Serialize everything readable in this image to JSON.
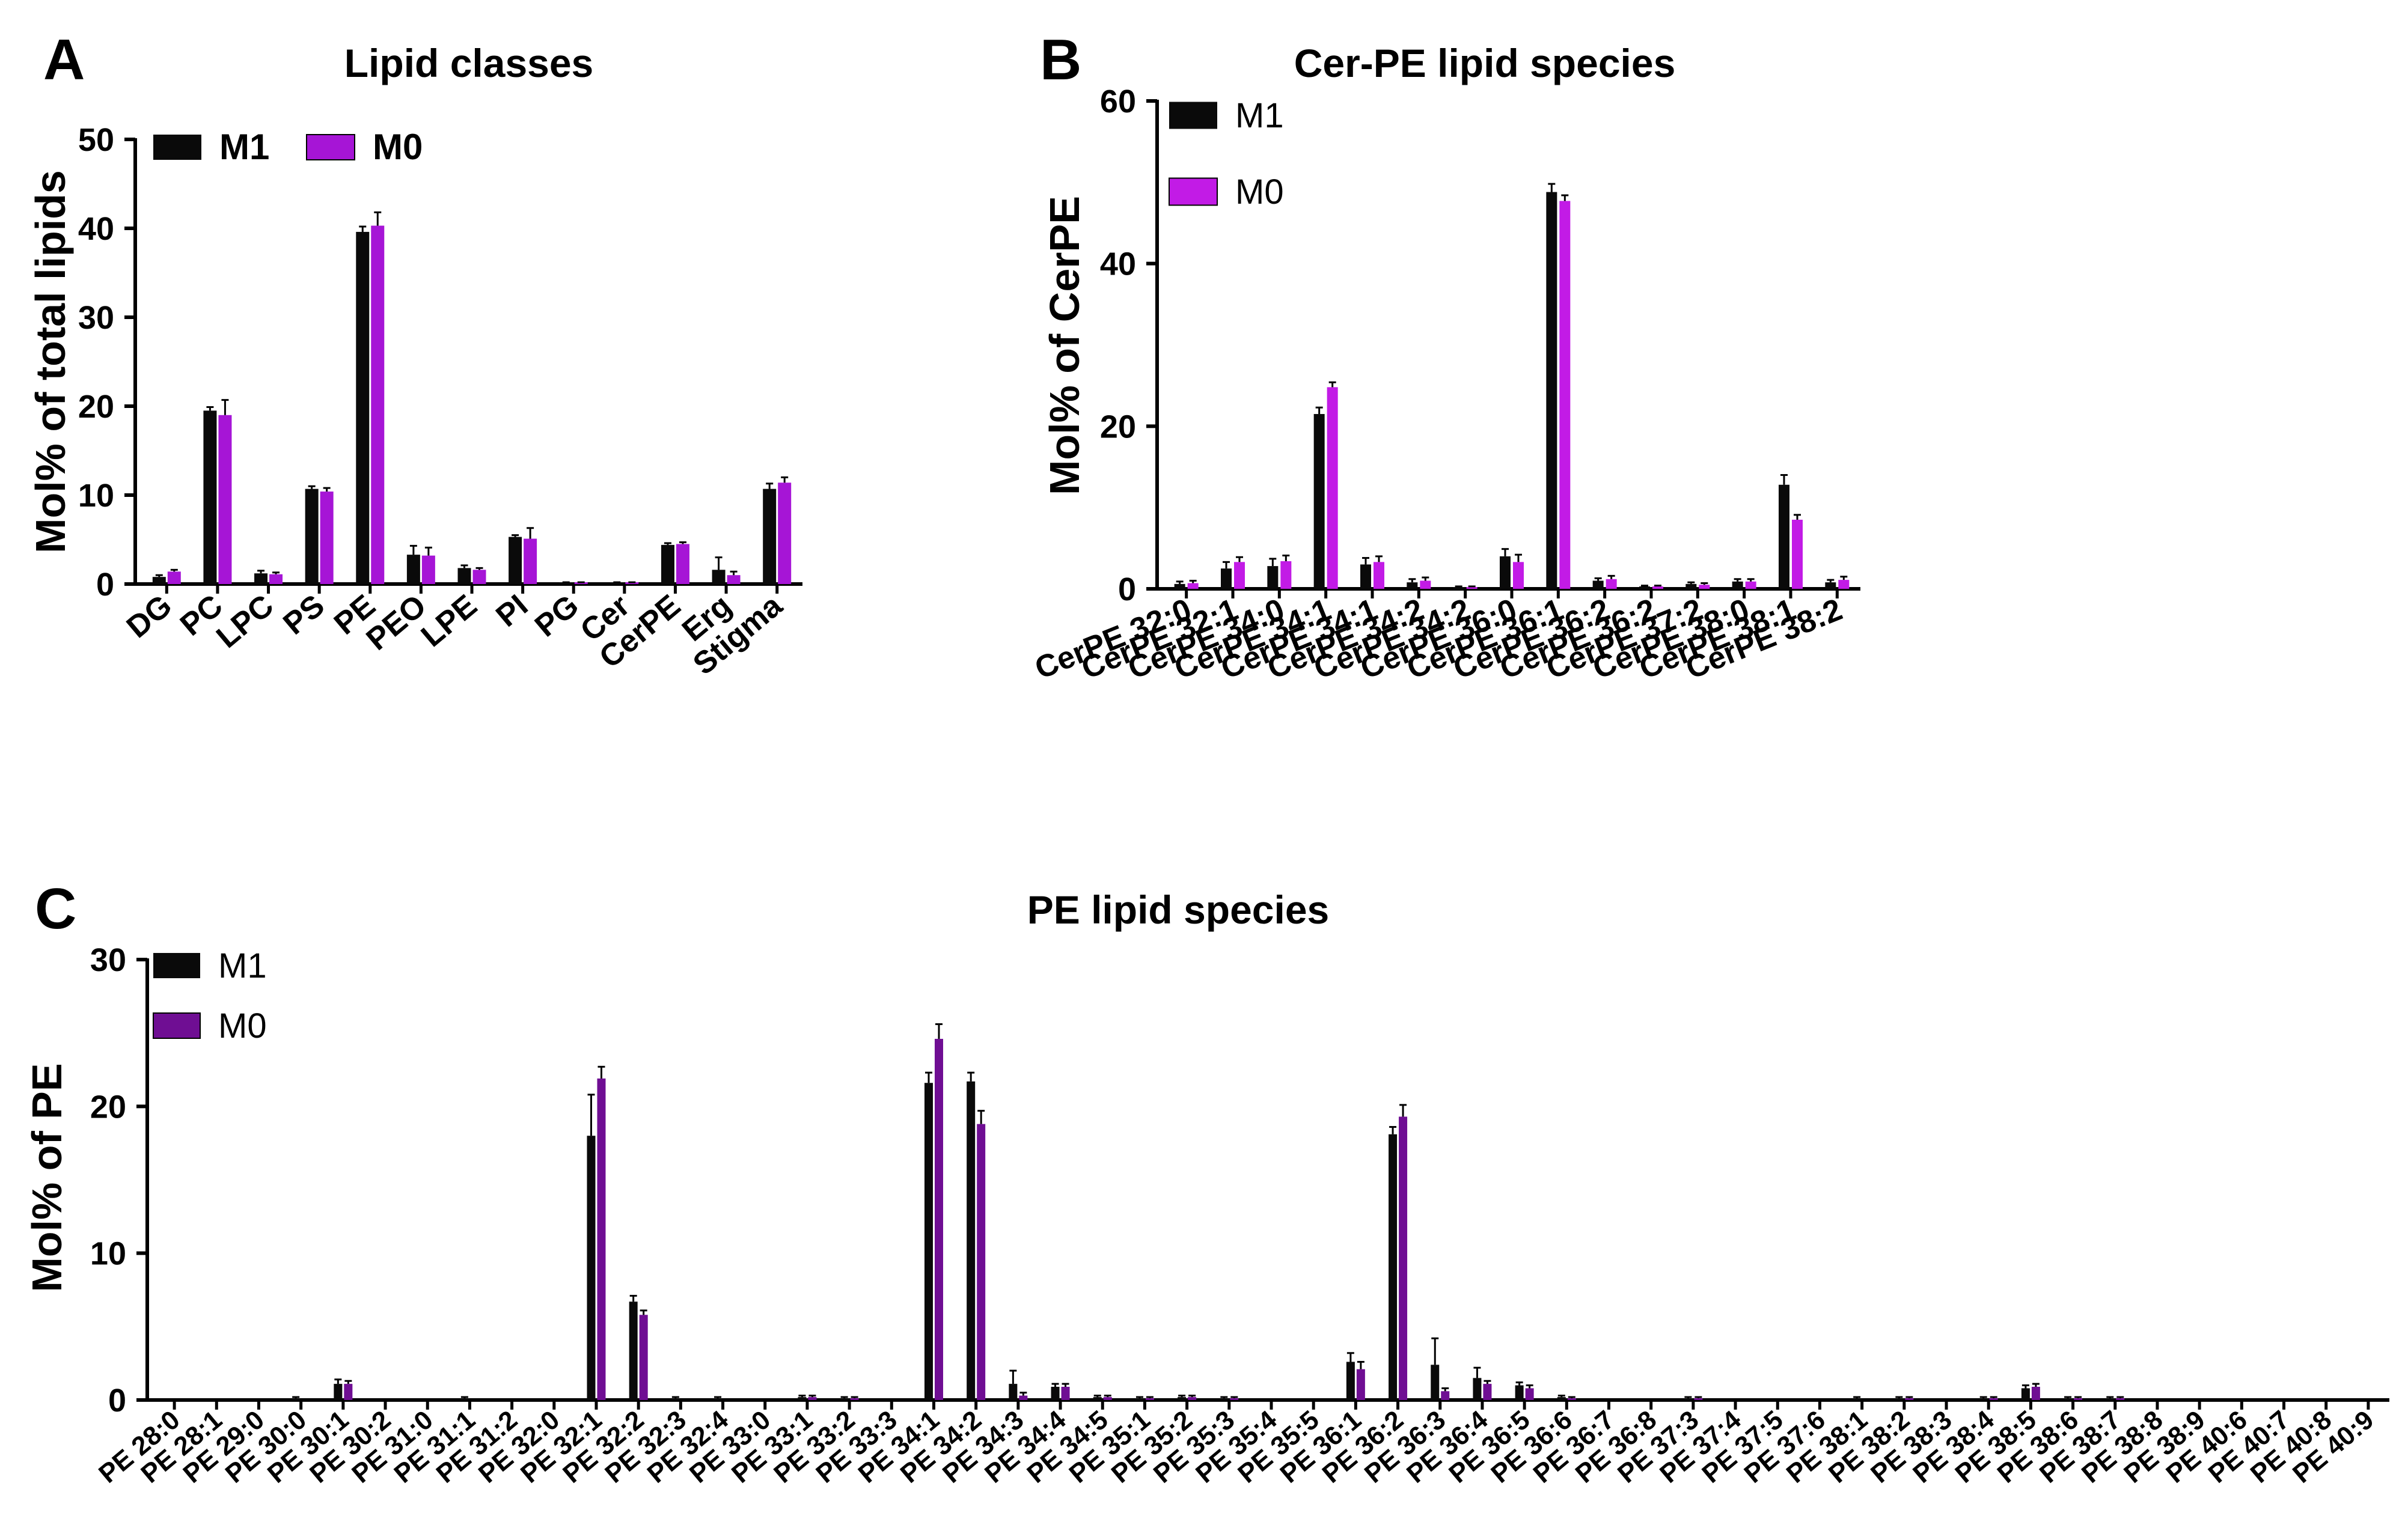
{
  "colors": {
    "m1": "#0a0a0a",
    "m0_a": "#a615d6",
    "m0_b": "#c21be6",
    "m0_c": "#6f0e93",
    "axis": "#000000",
    "error": "#000000"
  },
  "chart_data": [
    {
      "panel": "A",
      "type": "bar",
      "title": "Lipid classes",
      "xlabel": "",
      "ylabel": "Mol% of total lipids",
      "ylim": [
        0,
        50
      ],
      "yticks": [
        "0",
        "10",
        "20",
        "30",
        "40",
        "50"
      ],
      "legend_position": "top-left",
      "categories": [
        "DG",
        "PC",
        "LPC",
        "PS",
        "PE",
        "PEO",
        "LPE",
        "PI",
        "PG",
        "Cer",
        "CerPE",
        "Erg",
        "Stigma"
      ],
      "series": [
        {
          "name": "M1",
          "values": [
            0.8,
            19.5,
            1.2,
            10.7,
            39.6,
            3.3,
            1.8,
            5.3,
            0.1,
            0.1,
            4.4,
            1.6,
            10.7
          ],
          "errors": [
            0.2,
            0.4,
            0.3,
            0.3,
            0.6,
            1.0,
            0.3,
            0.2,
            0.1,
            0.1,
            0.2,
            1.4,
            0.6
          ]
        },
        {
          "name": "M0",
          "values": [
            1.4,
            19.0,
            1.1,
            10.4,
            40.3,
            3.2,
            1.6,
            5.1,
            0.1,
            0.1,
            4.5,
            1.0,
            11.4
          ],
          "errors": [
            0.2,
            1.7,
            0.2,
            0.4,
            1.5,
            0.9,
            0.2,
            1.2,
            0.1,
            0.1,
            0.2,
            0.4,
            0.6
          ]
        }
      ]
    },
    {
      "panel": "B",
      "type": "bar",
      "title": "Cer-PE lipid species",
      "xlabel": "",
      "ylabel": "Mol% of CerPE",
      "ylim": [
        0,
        60
      ],
      "yticks": [
        "0",
        "20",
        "40",
        "60"
      ],
      "legend_position": "top-left",
      "categories": [
        "CerPE 32:0",
        "CerPE 32:1",
        "CerPE 34:0",
        "CerPE 34:1",
        "CerPE 34:1",
        "CerPE 34:2",
        "CerPE 34:2",
        "CerPE 36:0",
        "CerPE 36:1",
        "CerPE 36:2",
        "CerPE 36:2",
        "CerPE 37:2",
        "CerPE 38:0",
        "CerPE 38:1",
        "CerPE 38:2"
      ],
      "series": [
        {
          "name": "M1",
          "values": [
            0.6,
            2.5,
            2.8,
            21.5,
            3.0,
            0.8,
            0.2,
            4.0,
            48.8,
            1.0,
            0.3,
            0.6,
            0.9,
            12.8,
            0.8
          ],
          "errors": [
            0.3,
            0.8,
            0.9,
            0.8,
            0.8,
            0.4,
            0.1,
            0.9,
            1.0,
            0.3,
            0.1,
            0.2,
            0.3,
            1.2,
            0.3
          ]
        },
        {
          "name": "M0",
          "values": [
            0.7,
            3.3,
            3.4,
            24.8,
            3.3,
            1.0,
            0.2,
            3.3,
            47.7,
            1.2,
            0.3,
            0.5,
            0.9,
            8.5,
            1.1
          ],
          "errors": [
            0.3,
            0.6,
            0.7,
            0.6,
            0.7,
            0.4,
            0.1,
            0.9,
            0.7,
            0.4,
            0.1,
            0.2,
            0.3,
            0.6,
            0.4
          ]
        }
      ]
    },
    {
      "panel": "C",
      "type": "bar",
      "title": "PE lipid species",
      "xlabel": "",
      "ylabel": "Mol% of PE",
      "ylim": [
        0,
        30
      ],
      "yticks": [
        "0",
        "10",
        "20",
        "30"
      ],
      "legend_position": "top-left",
      "categories": [
        "PE 28:0",
        "PE 28:1",
        "PE 29:0",
        "PE 30:0",
        "PE 30:1",
        "PE 30:2",
        "PE 31:0",
        "PE 31:1",
        "PE 31:2",
        "PE 32:0",
        "PE 32:1",
        "PE 32:2",
        "PE 32:3",
        "PE 32:4",
        "PE 33:0",
        "PE 33:1",
        "PE 33:2",
        "PE 33:3",
        "PE 34:1",
        "PE 34:2",
        "PE 34:3",
        "PE 34:4",
        "PE 34:5",
        "PE 35:1",
        "PE 35:2",
        "PE 35:3",
        "PE 35:4",
        "PE 35:5",
        "PE 36:1",
        "PE 36:2",
        "PE 36:3",
        "PE 36:4",
        "PE 36:5",
        "PE 36:6",
        "PE 36:7",
        "PE 36:8",
        "PE 37:3",
        "PE 37:4",
        "PE 37:5",
        "PE 37:6",
        "PE 38:1",
        "PE 38:2",
        "PE 38:3",
        "PE 38:4",
        "PE 38:5",
        "PE 38:6",
        "PE 38:7",
        "PE 38:8",
        "PE 38:9",
        "PE 40:6",
        "PE 40:7",
        "PE 40:8",
        "PE 40:9"
      ],
      "series": [
        {
          "name": "M1",
          "values": [
            0,
            0,
            0,
            0.1,
            1.1,
            0,
            0,
            0.1,
            0,
            0,
            18.0,
            6.7,
            0.1,
            0.1,
            0,
            0.2,
            0.1,
            0,
            21.6,
            21.7,
            1.1,
            0.9,
            0.2,
            0.1,
            0.2,
            0.1,
            0,
            0,
            2.6,
            18.1,
            2.4,
            1.5,
            1.0,
            0.2,
            0,
            0,
            0.1,
            0,
            0,
            0,
            0.1,
            0.1,
            0,
            0.1,
            0.8,
            0.1,
            0.1,
            0,
            0,
            0,
            0,
            0,
            0
          ],
          "errors": [
            0,
            0,
            0,
            0.1,
            0.3,
            0,
            0,
            0.1,
            0,
            0,
            2.8,
            0.4,
            0.1,
            0.1,
            0,
            0.1,
            0.1,
            0,
            0.7,
            0.6,
            0.9,
            0.2,
            0.1,
            0.1,
            0.1,
            0.1,
            0,
            0,
            0.6,
            0.5,
            1.8,
            0.7,
            0.2,
            0.1,
            0,
            0,
            0.1,
            0,
            0,
            0,
            0.1,
            0.1,
            0,
            0.1,
            0.2,
            0.1,
            0.1,
            0,
            0,
            0,
            0,
            0,
            0
          ]
        },
        {
          "name": "M0",
          "values": [
            0,
            0,
            0,
            0,
            1.1,
            0,
            0,
            0,
            0,
            0,
            21.9,
            5.8,
            0,
            0,
            0,
            0.2,
            0.1,
            0,
            24.6,
            18.8,
            0.3,
            0.9,
            0.2,
            0.1,
            0.2,
            0.1,
            0,
            0,
            2.1,
            19.3,
            0.6,
            1.1,
            0.8,
            0.1,
            0,
            0,
            0.1,
            0,
            0,
            0,
            0,
            0.1,
            0,
            0.1,
            0.9,
            0.1,
            0.1,
            0,
            0,
            0,
            0,
            0,
            0
          ],
          "errors": [
            0,
            0,
            0,
            0,
            0.2,
            0,
            0,
            0,
            0,
            0,
            0.8,
            0.3,
            0,
            0,
            0,
            0.1,
            0.1,
            0,
            1.0,
            0.9,
            0.2,
            0.2,
            0.1,
            0.1,
            0.1,
            0.1,
            0,
            0,
            0.5,
            0.8,
            0.2,
            0.2,
            0.2,
            0.1,
            0,
            0,
            0.1,
            0,
            0,
            0,
            0,
            0.1,
            0,
            0.1,
            0.2,
            0.1,
            0.1,
            0,
            0,
            0,
            0,
            0,
            0
          ]
        }
      ]
    }
  ]
}
